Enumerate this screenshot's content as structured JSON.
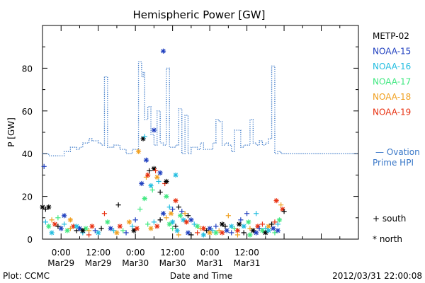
{
  "chart_data": {
    "type": "scatter",
    "title": "Hemispheric Power [GW]",
    "ylabel": "P [GW]",
    "xlabel": "Date and Time",
    "ylim": [
      0,
      100
    ],
    "yticks": [
      0,
      20,
      40,
      60,
      80
    ],
    "xlim_hours": [
      -6,
      96
    ],
    "xticks": [
      {
        "hour": 0,
        "time": "0:00",
        "date": "Mar29"
      },
      {
        "hour": 12,
        "time": "12:00",
        "date": "Mar29"
      },
      {
        "hour": 24,
        "time": "0:00",
        "date": "Mar30"
      },
      {
        "hour": 36,
        "time": "12:00",
        "date": "Mar30"
      },
      {
        "hour": 48,
        "time": "0:00",
        "date": "Mar31"
      },
      {
        "hour": 60,
        "time": "12:00",
        "date": "Mar31"
      }
    ],
    "footer_left": "Plot: CCMC",
    "footer_right": "2012/03/31 22:00:08",
    "series": [
      {
        "name": "METP-02",
        "color": "#000000"
      },
      {
        "name": "NOAA-15",
        "color": "#1f3fbf"
      },
      {
        "name": "NOAA-16",
        "color": "#22bde0"
      },
      {
        "name": "NOAA-17",
        "color": "#40e880"
      },
      {
        "name": "NOAA-18",
        "color": "#f0a020"
      },
      {
        "name": "NOAA-19",
        "color": "#e83010"
      }
    ],
    "ovation_label_1": "— Ovation",
    "ovation_label_2": "Prime HPI",
    "ovation_color": "#3a78c8",
    "marker_legend": {
      "south": "+ south",
      "north": "* north"
    },
    "ovation_line": [
      [
        -6,
        40
      ],
      [
        -4,
        39
      ],
      [
        -2,
        39
      ],
      [
        0,
        39
      ],
      [
        1,
        41
      ],
      [
        2,
        41
      ],
      [
        3,
        43
      ],
      [
        4,
        43
      ],
      [
        5,
        42
      ],
      [
        6,
        43
      ],
      [
        7,
        45
      ],
      [
        8,
        45
      ],
      [
        9,
        47
      ],
      [
        10,
        46
      ],
      [
        12,
        45
      ],
      [
        13,
        44
      ],
      [
        14,
        76
      ],
      [
        14.5,
        76
      ],
      [
        15,
        43
      ],
      [
        17,
        44
      ],
      [
        19,
        42
      ],
      [
        21,
        40
      ],
      [
        23,
        42
      ],
      [
        24,
        42
      ],
      [
        25,
        83
      ],
      [
        25.5,
        83
      ],
      [
        26,
        76
      ],
      [
        26.5,
        78
      ],
      [
        27,
        56
      ],
      [
        28,
        62
      ],
      [
        29,
        49
      ],
      [
        30,
        44
      ],
      [
        31,
        60
      ],
      [
        31.5,
        60
      ],
      [
        32,
        45
      ],
      [
        33,
        44
      ],
      [
        34,
        80
      ],
      [
        34.5,
        80
      ],
      [
        35,
        43
      ],
      [
        37,
        44
      ],
      [
        38,
        61
      ],
      [
        38.5,
        61
      ],
      [
        39,
        40
      ],
      [
        40,
        58
      ],
      [
        41,
        40
      ],
      [
        42,
        43
      ],
      [
        43,
        43
      ],
      [
        44,
        42
      ],
      [
        45,
        45
      ],
      [
        46,
        42
      ],
      [
        47,
        42
      ],
      [
        49,
        45
      ],
      [
        50,
        56
      ],
      [
        51,
        55
      ],
      [
        52,
        44
      ],
      [
        53,
        45
      ],
      [
        54,
        44
      ],
      [
        55,
        41
      ],
      [
        56,
        51
      ],
      [
        57,
        51
      ],
      [
        58,
        43
      ],
      [
        59,
        44
      ],
      [
        61,
        56
      ],
      [
        61.5,
        56
      ],
      [
        62,
        45
      ],
      [
        63,
        44
      ],
      [
        64,
        46
      ],
      [
        65,
        44
      ],
      [
        66,
        45
      ],
      [
        67,
        47
      ],
      [
        68,
        81
      ],
      [
        68.5,
        81
      ],
      [
        69,
        40
      ],
      [
        70,
        41
      ],
      [
        71,
        40
      ],
      [
        72,
        40
      ]
    ],
    "points": [
      [
        -5.5,
        34,
        1,
        "s"
      ],
      [
        -6,
        15,
        0,
        "n"
      ],
      [
        -5,
        14,
        0,
        "s"
      ],
      [
        -4,
        15,
        0,
        "n"
      ],
      [
        -5,
        8,
        2,
        "s"
      ],
      [
        -4,
        6,
        3,
        "n"
      ],
      [
        -3,
        9,
        4,
        "s"
      ],
      [
        -2,
        7,
        5,
        "n"
      ],
      [
        -1,
        6,
        0,
        "s"
      ],
      [
        0,
        5,
        1,
        "n"
      ],
      [
        1,
        7,
        2,
        "s"
      ],
      [
        2,
        4,
        3,
        "n"
      ],
      [
        3,
        5,
        4,
        "s"
      ],
      [
        4,
        6,
        5,
        "n"
      ],
      [
        5,
        4,
        0,
        "s"
      ],
      [
        6,
        5,
        1,
        "n"
      ],
      [
        7,
        3,
        2,
        "s"
      ],
      [
        8,
        5,
        3,
        "n"
      ],
      [
        9,
        4,
        4,
        "s"
      ],
      [
        10,
        6,
        5,
        "n"
      ],
      [
        -3,
        3,
        2,
        "n"
      ],
      [
        -1,
        10,
        3,
        "s"
      ],
      [
        1,
        11,
        1,
        "n"
      ],
      [
        3,
        9,
        4,
        "n"
      ],
      [
        5,
        6,
        2,
        "n"
      ],
      [
        7,
        4,
        0,
        "n"
      ],
      [
        9,
        2,
        5,
        "s"
      ],
      [
        11,
        4,
        1,
        "s"
      ],
      [
        12,
        3,
        2,
        "n"
      ],
      [
        13,
        5,
        0,
        "s"
      ],
      [
        14,
        12,
        5,
        "s"
      ],
      [
        15,
        8,
        3,
        "n"
      ],
      [
        16,
        5,
        1,
        "n"
      ],
      [
        17,
        4,
        2,
        "s"
      ],
      [
        18,
        3,
        4,
        "n"
      ],
      [
        18.5,
        16,
        0,
        "s"
      ],
      [
        19,
        6,
        5,
        "n"
      ],
      [
        20,
        4,
        3,
        "s"
      ],
      [
        21,
        3,
        1,
        "s"
      ],
      [
        22,
        8,
        4,
        "n"
      ],
      [
        23,
        6,
        2,
        "s"
      ],
      [
        23.5,
        4,
        0,
        "n"
      ],
      [
        24,
        9,
        1,
        "s"
      ],
      [
        24.5,
        5,
        5,
        "n"
      ],
      [
        25,
        41,
        4,
        "n"
      ],
      [
        25.5,
        14,
        3,
        "s"
      ],
      [
        26,
        26,
        1,
        "n"
      ],
      [
        26.5,
        47,
        0,
        "n"
      ],
      [
        27,
        48,
        2,
        "s"
      ],
      [
        27.5,
        37,
        1,
        "n"
      ],
      [
        27,
        19,
        3,
        "n"
      ],
      [
        27.5,
        29,
        4,
        "s"
      ],
      [
        28,
        30,
        5,
        "n"
      ],
      [
        28.5,
        32,
        0,
        "s"
      ],
      [
        29,
        25,
        2,
        "n"
      ],
      [
        29.5,
        23,
        3,
        "s"
      ],
      [
        30,
        51,
        1,
        "n"
      ],
      [
        30,
        33,
        0,
        "n"
      ],
      [
        30.5,
        32,
        5,
        "s"
      ],
      [
        31,
        29,
        4,
        "n"
      ],
      [
        31.5,
        27,
        2,
        "s"
      ],
      [
        32,
        31,
        1,
        "n"
      ],
      [
        32,
        22,
        0,
        "s"
      ],
      [
        33,
        88,
        1,
        "n"
      ],
      [
        33.5,
        26,
        5,
        "s"
      ],
      [
        34,
        27,
        0,
        "n"
      ],
      [
        34,
        20,
        3,
        "n"
      ],
      [
        35,
        15,
        2,
        "s"
      ],
      [
        35.5,
        12,
        4,
        "n"
      ],
      [
        36,
        14,
        1,
        "s"
      ],
      [
        37,
        30,
        2,
        "n"
      ],
      [
        37,
        18,
        5,
        "n"
      ],
      [
        38,
        15,
        0,
        "s"
      ],
      [
        38.5,
        11,
        3,
        "n"
      ],
      [
        39,
        13,
        1,
        "s"
      ],
      [
        39.5,
        9,
        2,
        "n"
      ],
      [
        40,
        12,
        4,
        "s"
      ],
      [
        40.5,
        8,
        5,
        "n"
      ],
      [
        41,
        11,
        0,
        "s"
      ],
      [
        42,
        9,
        1,
        "n"
      ],
      [
        43,
        7,
        2,
        "s"
      ],
      [
        44,
        6,
        3,
        "n"
      ],
      [
        45,
        5,
        4,
        "s"
      ],
      [
        46,
        5,
        5,
        "n"
      ],
      [
        47,
        4,
        0,
        "s"
      ],
      [
        48,
        5,
        1,
        "n"
      ],
      [
        49,
        4,
        2,
        "s"
      ],
      [
        50,
        3,
        3,
        "n"
      ],
      [
        51,
        4,
        4,
        "s"
      ],
      [
        52,
        3,
        5,
        "n"
      ],
      [
        53,
        6,
        0,
        "s"
      ],
      [
        53.5,
        4,
        1,
        "n"
      ],
      [
        54,
        11,
        4,
        "s"
      ],
      [
        55,
        6,
        2,
        "n"
      ],
      [
        56,
        5,
        3,
        "s"
      ],
      [
        57,
        4,
        5,
        "n"
      ],
      [
        57.5,
        7,
        0,
        "n"
      ],
      [
        58,
        9,
        1,
        "s"
      ],
      [
        59,
        6,
        2,
        "n"
      ],
      [
        60,
        12,
        1,
        "s"
      ],
      [
        60.5,
        8,
        3,
        "n"
      ],
      [
        61,
        5,
        4,
        "s"
      ],
      [
        62,
        4,
        0,
        "n"
      ],
      [
        63,
        12,
        2,
        "s"
      ],
      [
        63.5,
        6,
        5,
        "n"
      ],
      [
        64,
        5,
        1,
        "s"
      ],
      [
        65,
        4,
        3,
        "n"
      ],
      [
        66,
        5,
        2,
        "s"
      ],
      [
        67,
        6,
        4,
        "n"
      ],
      [
        68,
        7,
        0,
        "s"
      ],
      [
        68.5,
        5,
        1,
        "n"
      ],
      [
        69,
        8,
        5,
        "s"
      ],
      [
        69.5,
        18,
        5,
        "n"
      ],
      [
        70,
        7,
        2,
        "s"
      ],
      [
        70.5,
        9,
        3,
        "n"
      ],
      [
        71,
        16,
        4,
        "s"
      ],
      [
        71.5,
        14,
        5,
        "n"
      ],
      [
        72,
        13,
        0,
        "s"
      ],
      [
        36,
        5,
        3,
        "s"
      ],
      [
        37.5,
        4,
        2,
        "n"
      ],
      [
        38,
        2,
        4,
        "s"
      ],
      [
        41,
        3,
        1,
        "n"
      ],
      [
        42,
        2,
        0,
        "s"
      ],
      [
        44,
        3,
        5,
        "s"
      ],
      [
        46,
        2,
        2,
        "n"
      ],
      [
        48,
        3,
        4,
        "n"
      ],
      [
        50,
        6,
        1,
        "s"
      ],
      [
        52,
        7,
        0,
        "n"
      ],
      [
        55,
        3,
        1,
        "s"
      ],
      [
        57,
        2,
        4,
        "s"
      ],
      [
        59,
        3,
        0,
        "s"
      ],
      [
        61,
        2,
        3,
        "n"
      ],
      [
        63,
        3,
        1,
        "n"
      ],
      [
        65,
        7,
        5,
        "s"
      ],
      [
        66,
        3,
        0,
        "n"
      ],
      [
        67,
        4,
        2,
        "n"
      ],
      [
        69,
        3,
        3,
        "s"
      ],
      [
        70,
        4,
        1,
        "n"
      ],
      [
        28,
        7,
        3,
        "s"
      ],
      [
        29,
        5,
        4,
        "n"
      ],
      [
        30,
        8,
        2,
        "s"
      ],
      [
        31,
        6,
        5,
        "n"
      ],
      [
        32,
        9,
        0,
        "s"
      ],
      [
        33,
        12,
        1,
        "n"
      ],
      [
        34,
        10,
        4,
        "s"
      ],
      [
        35,
        7,
        3,
        "n"
      ],
      [
        36,
        8,
        2,
        "n"
      ],
      [
        37,
        6,
        0,
        "s"
      ]
    ]
  }
}
